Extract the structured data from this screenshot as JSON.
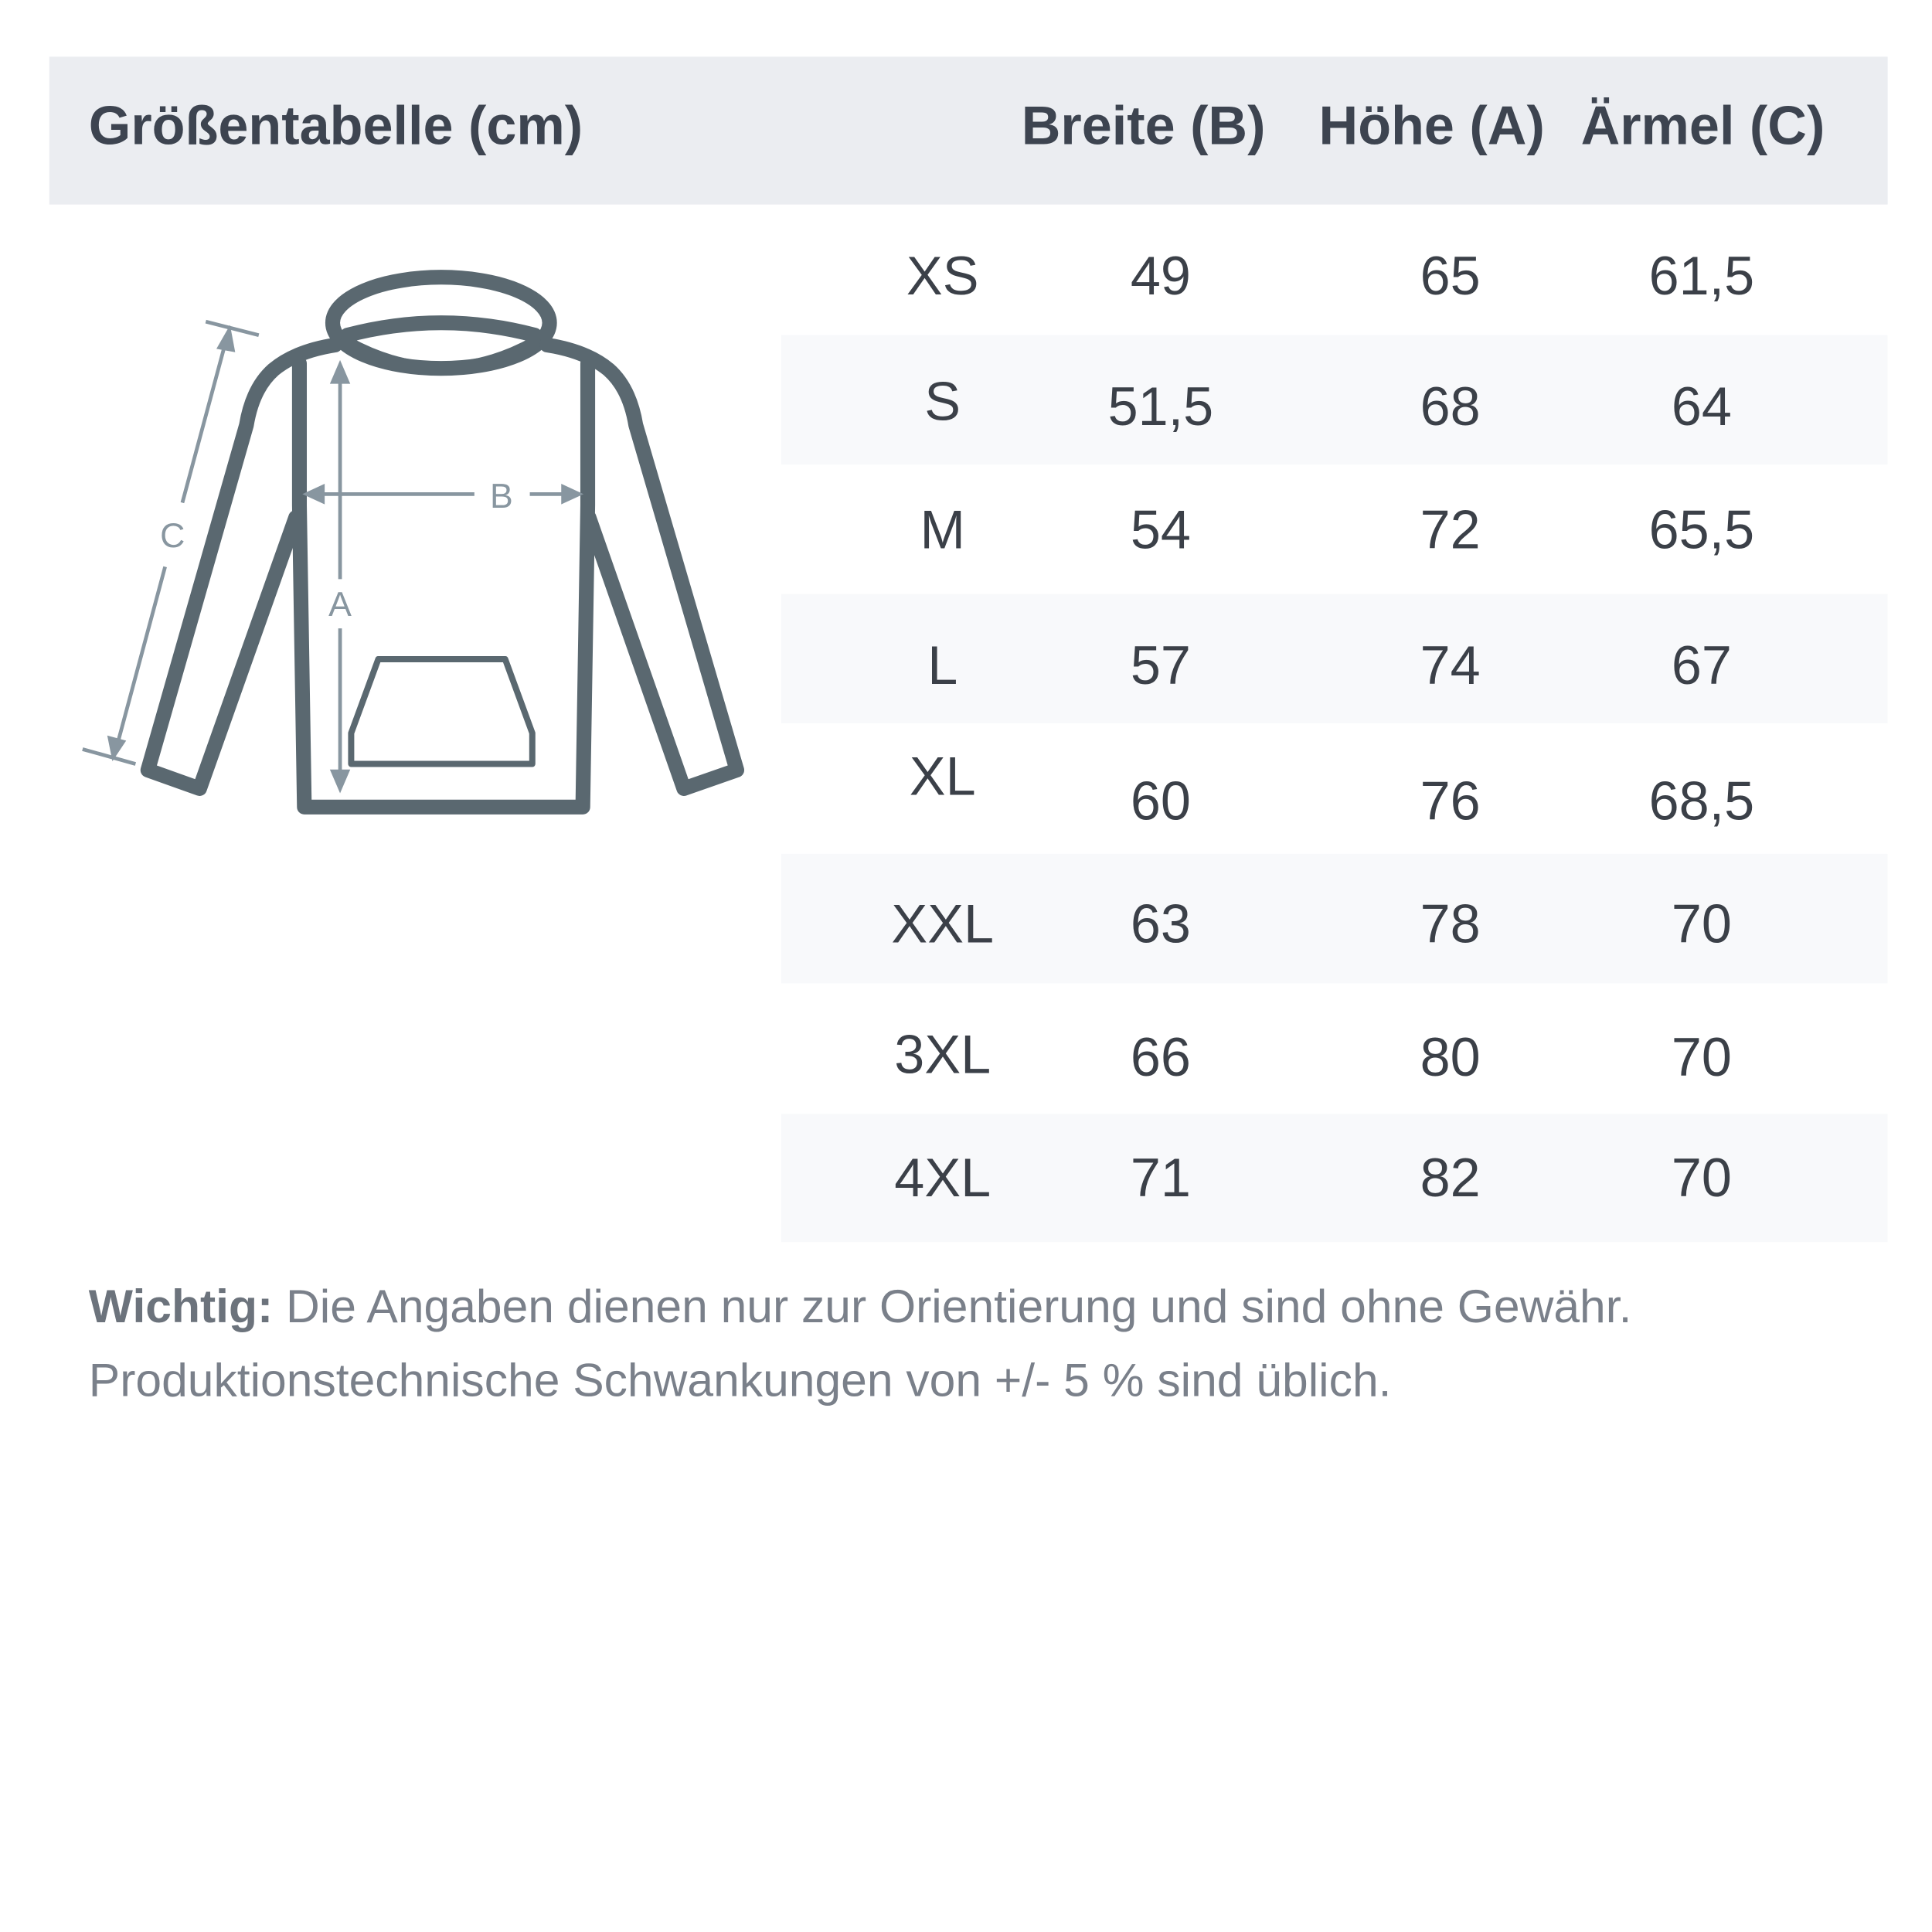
{
  "header": {
    "title": "Größentabelle (cm)",
    "columns": [
      "Breite (B)",
      "Höhe (A)",
      "Ärmel (C)"
    ]
  },
  "diagram": {
    "labels": {
      "a": "A",
      "b": "B",
      "c": "C"
    },
    "icon": "hoodie-outline"
  },
  "rows": [
    {
      "size": "XS",
      "breite": "49",
      "hoehe": "65",
      "aermel": "61,5"
    },
    {
      "size": "S",
      "breite": "51,5",
      "hoehe": "68",
      "aermel": "64"
    },
    {
      "size": "M",
      "breite": "54",
      "hoehe": "72",
      "aermel": "65,5"
    },
    {
      "size": "L",
      "breite": "57",
      "hoehe": "74",
      "aermel": "67"
    },
    {
      "size": "XL",
      "breite": "60",
      "hoehe": "76",
      "aermel": "68,5"
    },
    {
      "size": "XXL",
      "breite": "63",
      "hoehe": "78",
      "aermel": "70"
    },
    {
      "size": "3XL",
      "breite": "66",
      "hoehe": "80",
      "aermel": "70"
    },
    {
      "size": "4XL",
      "breite": "71",
      "hoehe": "82",
      "aermel": "70"
    }
  ],
  "note": {
    "bold": "Wichtig:",
    "line1": " Die Angaben dienen nur zur Orientierung und sind ohne Gewähr.",
    "line2": "Produktionstechnische Schwankungen von +/- 5 % sind üblich."
  },
  "colors": {
    "header_bg": "#ebedf1",
    "text": "#3d4450",
    "stripe": "#f8f9fb",
    "outline": "#5a6870",
    "arrows": "#8896a0"
  }
}
